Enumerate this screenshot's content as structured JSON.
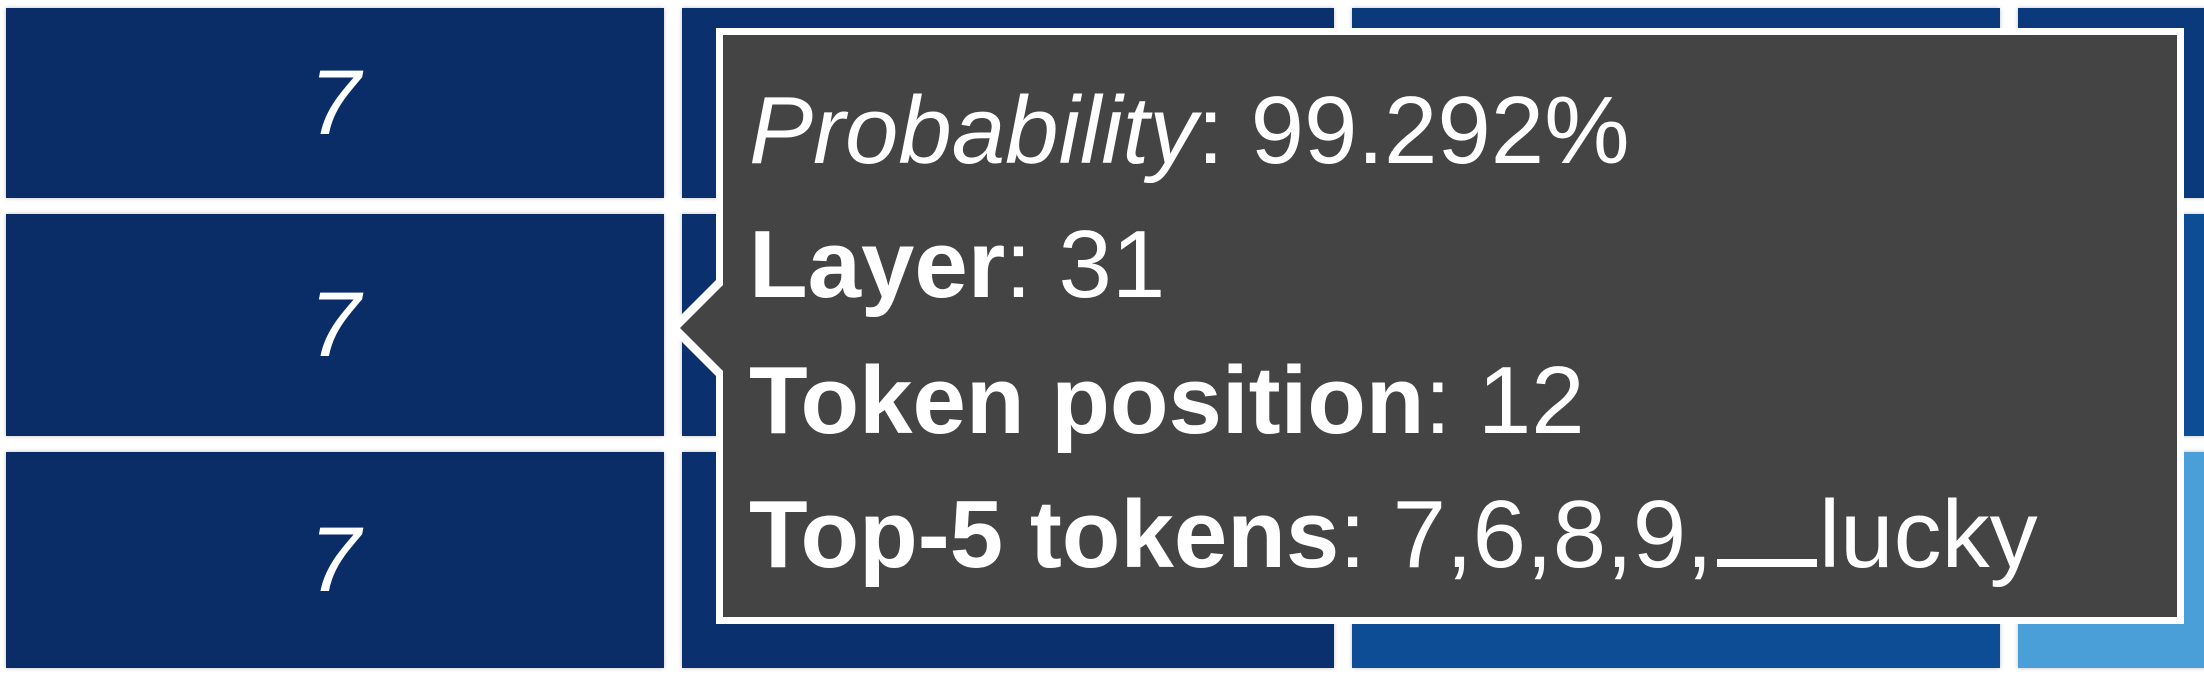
{
  "heatmap": {
    "colors": {
      "dark": "#0a2d68",
      "mid": "#0c4d96",
      "light": "#4a9fd8"
    },
    "rows": [
      {
        "label": "7"
      },
      {
        "label": "7"
      },
      {
        "label": "7"
      }
    ]
  },
  "tooltip": {
    "probability_key": "Probability",
    "probability_value": ": 99.292%",
    "layer_key": "Layer",
    "layer_value": ": 31",
    "position_key": "Token position",
    "position_value": ": 12",
    "top5_key": "Top-5 tokens",
    "top5_prefix": ": 7,6,8,9,",
    "top5_last": "lucky",
    "background": "#444444"
  }
}
